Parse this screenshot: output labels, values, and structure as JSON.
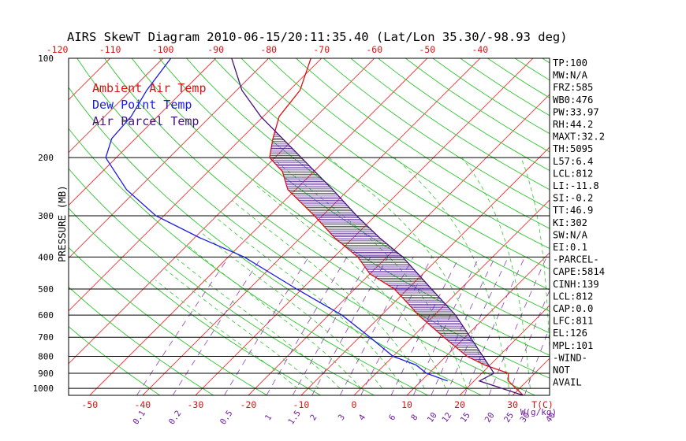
{
  "chart_data": {
    "type": "skew-t",
    "title": "AIRS SkewT Diagram 2010-06-15/20:11:35.40 (Lat/Lon 35.30/-98.93 deg)",
    "ylabel": "PRESSURE (MB)",
    "pressure_ticks": [
      100,
      200,
      300,
      400,
      500,
      600,
      700,
      800,
      900,
      1000
    ],
    "pressure_range": [
      100,
      1050
    ],
    "bottom_temp_ticks": [
      -50,
      -40,
      -30,
      -20,
      -10,
      0,
      10,
      20,
      30
    ],
    "bottom_temp_label": "T(C)",
    "top_temp_ticks": [
      -120,
      -110,
      -100,
      -90,
      -80,
      -70,
      -60,
      -50,
      -40
    ],
    "mixing_ratio_ticks": [
      "0.1",
      "0.2",
      "0.5",
      "1",
      "1.5",
      "2",
      "3",
      "4",
      "6",
      "8",
      "10",
      "12",
      "15",
      "20",
      "25",
      "30",
      "40"
    ],
    "mixing_ratio_label": "W(g/kg)",
    "temp_range_at_1050": [
      -54,
      37
    ],
    "grid": true,
    "legend_position": "top-left",
    "legend": [
      {
        "label": "Ambient Air Temp",
        "color": "#dd1111"
      },
      {
        "label": "Dew Point Temp",
        "color": "#1a1ae6"
      },
      {
        "label": "Air Parcel Temp",
        "color": "#44137a"
      }
    ],
    "series": [
      {
        "name": "Ambient Air Temp",
        "color": "#dd1111",
        "points": [
          [
            1050,
            32.0
          ],
          [
            950,
            26.5
          ],
          [
            900,
            25.0
          ],
          [
            850,
            19.0
          ],
          [
            800,
            14.0
          ],
          [
            700,
            6.0
          ],
          [
            600,
            -3.0
          ],
          [
            550,
            -7.5
          ],
          [
            500,
            -12.5
          ],
          [
            450,
            -20.0
          ],
          [
            400,
            -25.5
          ],
          [
            350,
            -33.5
          ],
          [
            300,
            -41.5
          ],
          [
            250,
            -51.5
          ],
          [
            220,
            -56.0
          ],
          [
            200,
            -61.0
          ],
          [
            175,
            -64.0
          ],
          [
            150,
            -67.0
          ],
          [
            125,
            -68.0
          ],
          [
            100,
            -72.0
          ]
        ]
      },
      {
        "name": "Dew Point Temp",
        "color": "#1a1ae6",
        "points": [
          [
            950,
            15.0
          ],
          [
            900,
            9.5
          ],
          [
            850,
            6.0
          ],
          [
            800,
            0.0
          ],
          [
            700,
            -8.0
          ],
          [
            600,
            -17.5
          ],
          [
            500,
            -31.0
          ],
          [
            400,
            -47.0
          ],
          [
            350,
            -59.0
          ],
          [
            300,
            -71.5
          ],
          [
            250,
            -82.0
          ],
          [
            200,
            -92.0
          ],
          [
            175,
            -94.5
          ],
          [
            150,
            -95.0
          ],
          [
            125,
            -97.0
          ],
          [
            100,
            -98.5
          ]
        ]
      },
      {
        "name": "Air Parcel Temp",
        "color": "#44137a",
        "points": [
          [
            1050,
            32.0
          ],
          [
            950,
            21.0
          ],
          [
            900,
            22.3
          ],
          [
            800,
            17.0
          ],
          [
            700,
            11.0
          ],
          [
            600,
            4.0
          ],
          [
            500,
            -5.5
          ],
          [
            400,
            -17.0
          ],
          [
            350,
            -25.0
          ],
          [
            300,
            -33.5
          ],
          [
            250,
            -43.0
          ],
          [
            200,
            -55.0
          ],
          [
            150,
            -70.5
          ],
          [
            125,
            -79.0
          ],
          [
            100,
            -87.0
          ]
        ]
      }
    ],
    "index_panel": [
      "TP:100",
      "MW:N/A",
      "FRZ:585",
      "WB0:476",
      "PW:33.97",
      "RH:44.2",
      "MAXT:32.2",
      "TH:5095",
      "L57:6.4",
      "LCL:812",
      "LI:-11.8",
      "SI:-0.2",
      "TT:46.9",
      "KI:302",
      "SW:N/A",
      "EI:0.1",
      "-PARCEL-",
      "CAPE:5814",
      "CINH:139",
      "LCL:812",
      "CAP:0.0",
      "LFC:811",
      "EL:126",
      "MPL:101",
      "-WIND-",
      "NOT",
      "AVAIL"
    ]
  }
}
